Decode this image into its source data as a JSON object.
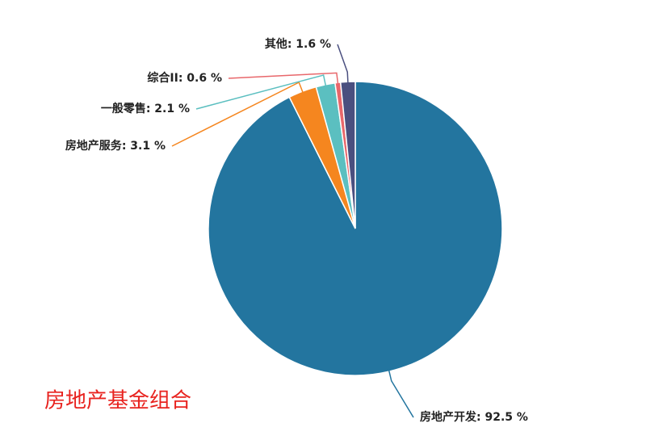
{
  "chart_data": {
    "type": "pie",
    "title": "房地产基金组合",
    "categories": [
      "房地产开发",
      "房地产服务",
      "一般零售",
      "综合II",
      "其他"
    ],
    "values": [
      92.5,
      3.1,
      2.1,
      0.6,
      1.6
    ],
    "value_labels": [
      ": 92.5 %",
      ": 3.1 %",
      ": 2.1 %",
      ": 0.6 %",
      ": 1.6 %"
    ],
    "colors": [
      "#23759f",
      "#f5861f",
      "#5bbfc0",
      "#e8676b",
      "#4a4f7f"
    ]
  }
}
